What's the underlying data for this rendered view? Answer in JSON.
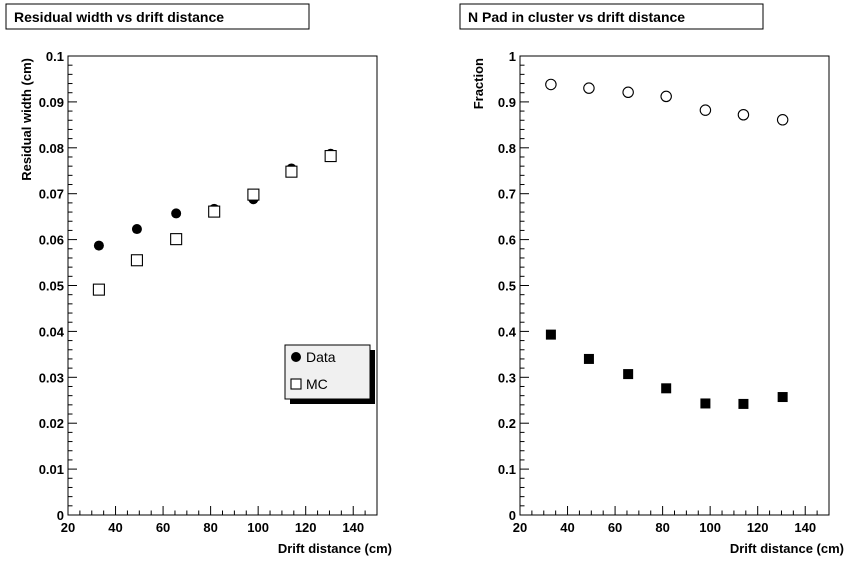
{
  "chart_data": [
    {
      "type": "scatter",
      "title": "Residual width vs drift distance",
      "xlabel": "Drift distance (cm)",
      "ylabel": "Residual width (cm)",
      "xlim": [
        20,
        150
      ],
      "ylim": [
        0,
        0.1
      ],
      "xticks": [
        "20",
        "40",
        "60",
        "80",
        "100",
        "120",
        "140"
      ],
      "yticks": [
        "0",
        "0.01",
        "0.02",
        "0.03",
        "0.04",
        "0.05",
        "0.06",
        "0.07",
        "0.08",
        "0.09",
        "0.1"
      ],
      "legend": {
        "position": "right"
      },
      "x": [
        33,
        49,
        65.5,
        81.5,
        98,
        114,
        130.5
      ],
      "series": [
        {
          "name": "Data",
          "marker": "filled-circle",
          "values": [
            0.0587,
            0.0623,
            0.0657,
            0.0667,
            0.0688,
            0.0755,
            0.0787
          ]
        },
        {
          "name": "MC",
          "marker": "open-square",
          "values": [
            0.0491,
            0.0555,
            0.0601,
            0.0661,
            0.0698,
            0.0748,
            0.0782
          ]
        }
      ]
    },
    {
      "type": "scatter",
      "title": "N Pad in cluster vs drift distance",
      "xlabel": "Drift distance (cm)",
      "ylabel": "Fraction",
      "xlim": [
        20,
        150
      ],
      "ylim": [
        0,
        1
      ],
      "xticks": [
        "20",
        "40",
        "60",
        "80",
        "100",
        "120",
        "140"
      ],
      "yticks": [
        "0",
        "0.1",
        "0.2",
        "0.3",
        "0.4",
        "0.5",
        "0.6",
        "0.7",
        "0.8",
        "0.9",
        "1"
      ],
      "x": [
        33,
        49,
        65.5,
        81.5,
        98,
        114,
        130.5
      ],
      "series": [
        {
          "marker": "open-circle",
          "values": [
            0.938,
            0.93,
            0.921,
            0.912,
            0.882,
            0.872,
            0.861
          ]
        },
        {
          "marker": "filled-square",
          "values": [
            0.393,
            0.34,
            0.307,
            0.276,
            0.243,
            0.242,
            0.257
          ]
        }
      ]
    }
  ]
}
